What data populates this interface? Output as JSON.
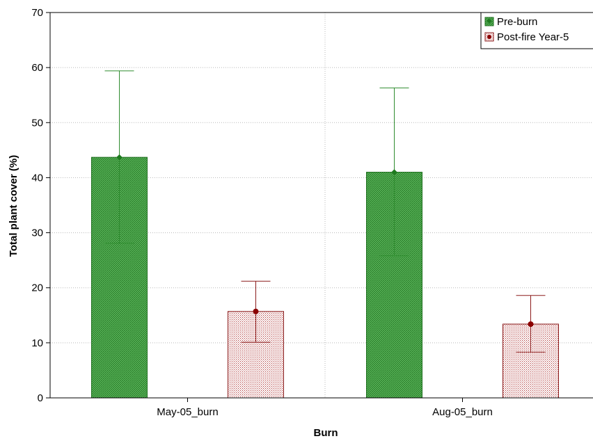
{
  "chart_data": {
    "type": "bar",
    "title": "",
    "xlabel": "Burn",
    "ylabel": "Total plant cover (%)",
    "ylim": [
      0,
      70
    ],
    "yticks": [
      0,
      10,
      20,
      30,
      40,
      50,
      60,
      70
    ],
    "grid": true,
    "legend_position": "top-right",
    "categories": [
      "May-05_burn",
      "Aug-05_burn"
    ],
    "series": [
      {
        "name": "Pre-burn",
        "color": "#3a9a3a",
        "values": [
          43.7,
          41.0
        ],
        "error_low": [
          28.1,
          25.8
        ],
        "error_high": [
          59.4,
          56.3
        ]
      },
      {
        "name": "Post-fire Year-5",
        "color": "#8b1a1a",
        "values": [
          15.7,
          13.4
        ],
        "error_low": [
          10.1,
          8.3
        ],
        "error_high": [
          21.2,
          18.6
        ]
      }
    ]
  }
}
